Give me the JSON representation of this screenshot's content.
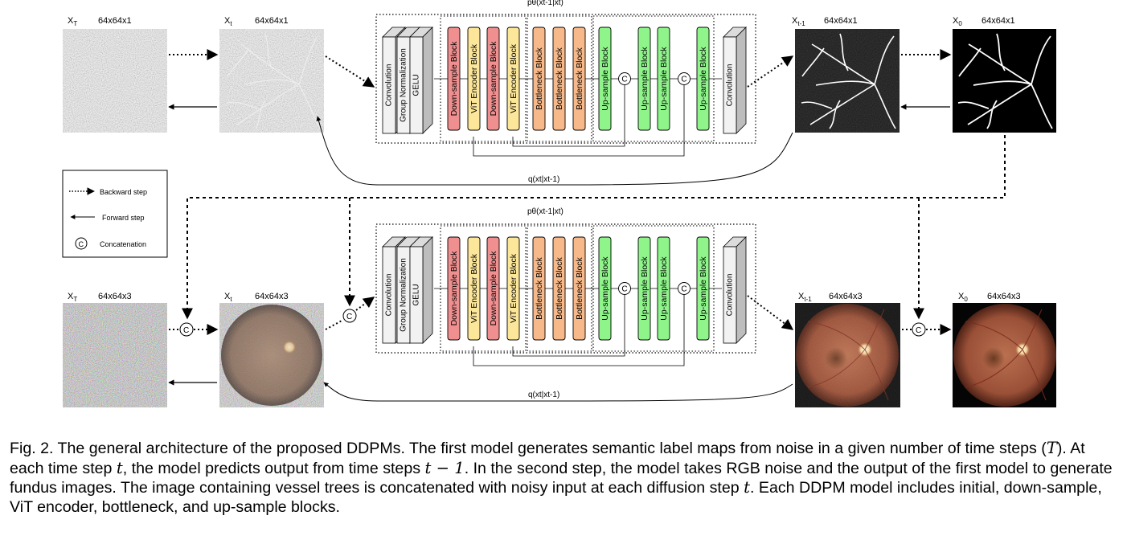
{
  "colors": {
    "down": "#ef8f8f",
    "vit": "#fbe69a",
    "bottleneck": "#f7b98a",
    "up": "#8ff58b",
    "initial": "#f2f2f2"
  },
  "top": {
    "xT_label": "X",
    "xT_sub": "T",
    "xT_size": "64x64x1",
    "xt_label": "X",
    "xt_sub": "t",
    "xt_size": "64x64x1",
    "xt1_label": "X",
    "xt1_sub": "t-1",
    "xt1_size": "64x64x1",
    "x0_label": "X",
    "x0_sub": "0",
    "x0_size": "64x64x1",
    "p_label": "pθ(xt-1|xt)",
    "q_label": "q(xt|xt-1)"
  },
  "bottom": {
    "xT_label": "X",
    "xT_sub": "T",
    "xT_size": "64x64x3",
    "xt_label": "X",
    "xt_sub": "t",
    "xt_size": "64x64x3",
    "xt1_label": "X",
    "xt1_sub": "t-1",
    "xt1_size": "64x64x3",
    "x0_label": "X",
    "x0_sub": "0",
    "x0_size": "64x64x3",
    "p_label": "pθ(xt-1|xt)",
    "q_label": "q(xt|xt-1)"
  },
  "initial_labels": [
    "Convolution",
    "Group Normalization",
    "GELU"
  ],
  "blocks": [
    {
      "label": "Down-sample Block",
      "type": "down"
    },
    {
      "label": "ViT Encoder Block",
      "type": "vit"
    },
    {
      "label": "Down-sample Block",
      "type": "down"
    },
    {
      "label": "ViT Encoder Block",
      "type": "vit"
    },
    {
      "label": "Bottleneck Block",
      "type": "bottleneck"
    },
    {
      "label": "Bottleneck Block",
      "type": "bottleneck"
    },
    {
      "label": "Bottleneck Block",
      "type": "bottleneck"
    },
    {
      "label": "Up-sample Block",
      "type": "up"
    },
    {
      "label": "Up-sample Block",
      "type": "up"
    },
    {
      "label": "Up-sample Block",
      "type": "up"
    },
    {
      "label": "Up-sample Block",
      "type": "up"
    }
  ],
  "final_label": "Convolution",
  "concat_symbol": "C",
  "legend": {
    "backward": "Backward step",
    "forward": "Forward step",
    "concat": "Concatenation"
  },
  "caption": {
    "p1": "Fig. 2. The general architecture of the proposed DDPMs. The first model generates semantic label maps from noise in a given number of time steps (",
    "T": "T",
    "p2": "). At each time step ",
    "t1": "t",
    "p3": ", the model predicts output from time steps ",
    "t2": "t − 1",
    "p4": ". In the second step, the model takes RGB noise and the output of the first model to generate fundus images. The image containing vessel trees is concatenated with noisy input at each diffusion step ",
    "t3": "t",
    "p5": ". Each DDPM model includes initial, down-sample, ViT encoder, bottleneck, and up-sample blocks."
  }
}
